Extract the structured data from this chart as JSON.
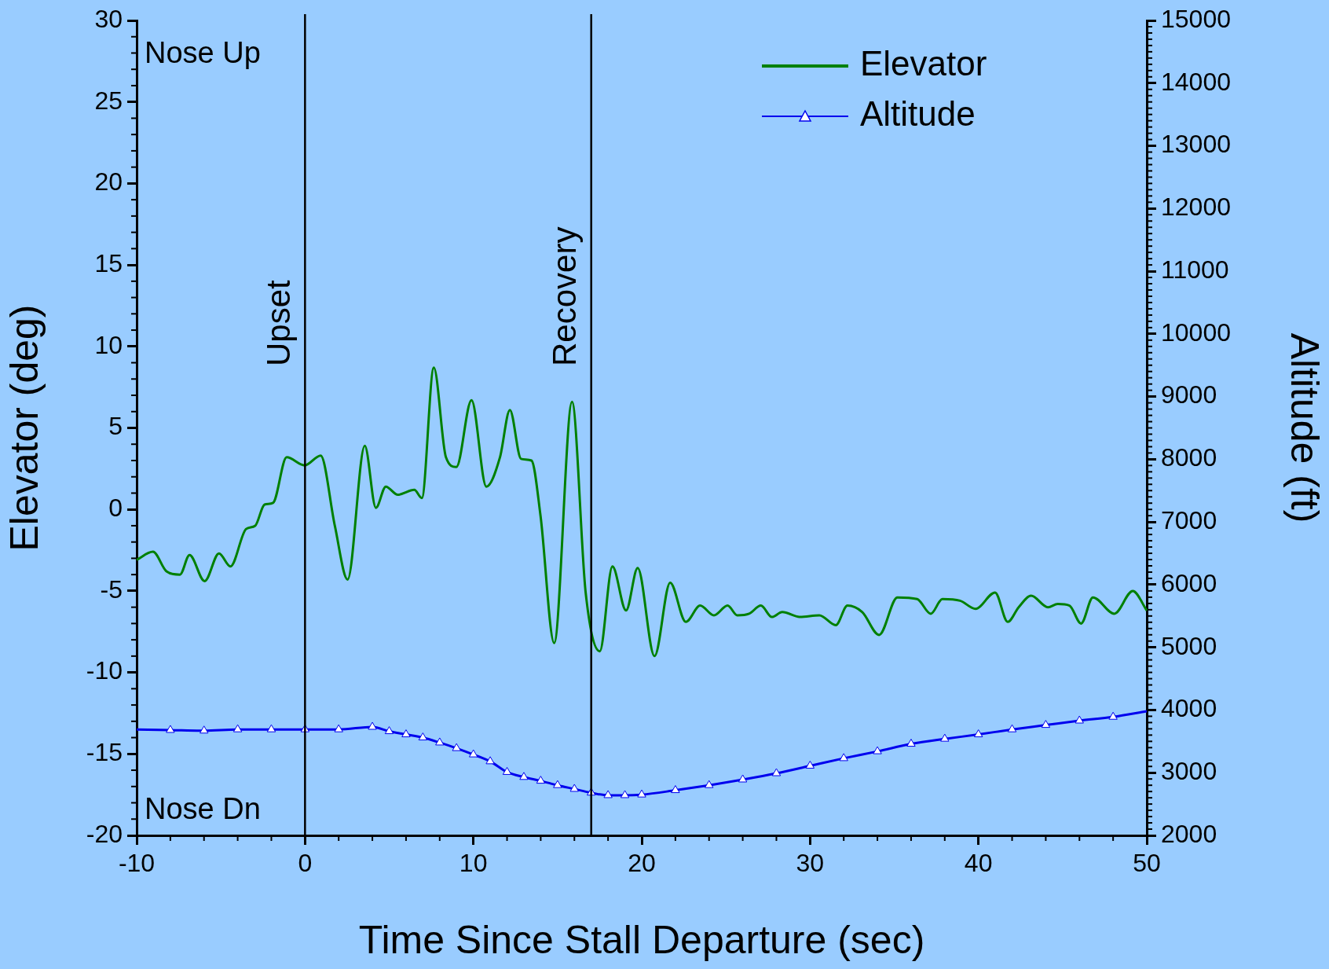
{
  "chart_data": {
    "type": "line",
    "xlabel": "Time Since Stall Departure (sec)",
    "ylabel": "Elevator (deg)",
    "y2label": "Altitude (ft)",
    "xlim": [
      -10,
      50
    ],
    "xticks": [
      -10,
      0,
      10,
      20,
      30,
      40,
      50
    ],
    "ylim": [
      -20,
      30
    ],
    "yticks": [
      -20,
      -15,
      -10,
      -5,
      0,
      5,
      10,
      15,
      20,
      25,
      30
    ],
    "y2lim": [
      2000,
      15000
    ],
    "y2ticks": [
      2000,
      3000,
      4000,
      5000,
      6000,
      7000,
      8000,
      9000,
      10000,
      11000,
      12000,
      13000,
      14000,
      15000
    ],
    "grid": false,
    "legend": "top right",
    "annotations": [
      "Nose Up",
      "Nose Dn"
    ],
    "ref_lines": [
      {
        "axis": "x",
        "value": 0,
        "label": "Upset"
      },
      {
        "axis": "x",
        "value": 17,
        "label": "Recovery"
      }
    ],
    "series": [
      {
        "name": "Elevator",
        "color": "#008000",
        "marker": "none",
        "x": [
          -10,
          -9.03,
          -8.23,
          -7.43,
          -6.86,
          -5.96,
          -5.11,
          -4.43,
          -3.5,
          -2.96,
          -2.4,
          -1.9,
          -1.09,
          -0.02,
          0.93,
          1.77,
          2.53,
          3.55,
          4.21,
          4.8,
          5.51,
          6.49,
          6.94,
          7.65,
          8.37,
          8.99,
          9.89,
          10.77,
          11.58,
          12.17,
          12.83,
          13.45,
          13.99,
          14.8,
          15.86,
          16.67,
          17.51,
          18.26,
          19.07,
          19.76,
          20.76,
          21.69,
          22.62,
          23.47,
          24.29,
          25.1,
          25.68,
          26.38,
          27.08,
          27.73,
          28.35,
          29.4,
          30.55,
          31.53,
          32.22,
          33.1,
          34.1,
          35.19,
          36.36,
          37.17,
          37.86,
          38.91,
          39.83,
          40.99,
          41.74,
          42.39,
          43.13,
          44.13,
          44.71,
          45.41,
          46.1,
          46.8,
          48.07,
          49.17,
          50
        ],
        "values": [
          -3.1,
          -2.6,
          -3.8,
          -4,
          -2.8,
          -4.4,
          -2.7,
          -3.5,
          -1.2,
          -1,
          0.3,
          0.4,
          3.2,
          2.7,
          3.3,
          -1,
          -4.3,
          3.9,
          0.1,
          1.4,
          0.9,
          1.2,
          0.7,
          8.7,
          3.2,
          2.6,
          6.7,
          1.4,
          3.2,
          6.1,
          3.1,
          3,
          -0.4,
          -8.2,
          6.6,
          -5.1,
          -8.7,
          -3.5,
          -6.2,
          -3.6,
          -9,
          -4.5,
          -6.9,
          -5.9,
          -6.5,
          -5.9,
          -6.5,
          -6.4,
          -5.9,
          -6.6,
          -6.3,
          -6.6,
          -6.5,
          -7.1,
          -5.9,
          -6.3,
          -7.7,
          -5.4,
          -5.5,
          -6.4,
          -5.5,
          -5.6,
          -6.1,
          -5.1,
          -6.9,
          -6,
          -5.3,
          -6,
          -5.8,
          -5.9,
          -7,
          -5.4,
          -6.4,
          -5,
          -6.2
        ]
      },
      {
        "name": "Altitude",
        "color": "#0000ee",
        "axis": "y2",
        "marker": "triangle",
        "x": [
          -10,
          -8,
          -6,
          -4,
          -2,
          0,
          2,
          4,
          5,
          6,
          7,
          8,
          9,
          10,
          11,
          12,
          13,
          14,
          15,
          16,
          17,
          18,
          19,
          20,
          22,
          24,
          26,
          28,
          30,
          32,
          34,
          36,
          38,
          40,
          42,
          44,
          46,
          48,
          50
        ],
        "values": [
          3690,
          3680,
          3670,
          3690,
          3690,
          3690,
          3690,
          3730,
          3660,
          3610,
          3560,
          3480,
          3390,
          3290,
          3180,
          3010,
          2930,
          2870,
          2800,
          2740,
          2680,
          2640,
          2640,
          2650,
          2720,
          2800,
          2890,
          2990,
          3110,
          3230,
          3340,
          3460,
          3540,
          3610,
          3690,
          3760,
          3830,
          3890,
          3980
        ]
      }
    ]
  }
}
